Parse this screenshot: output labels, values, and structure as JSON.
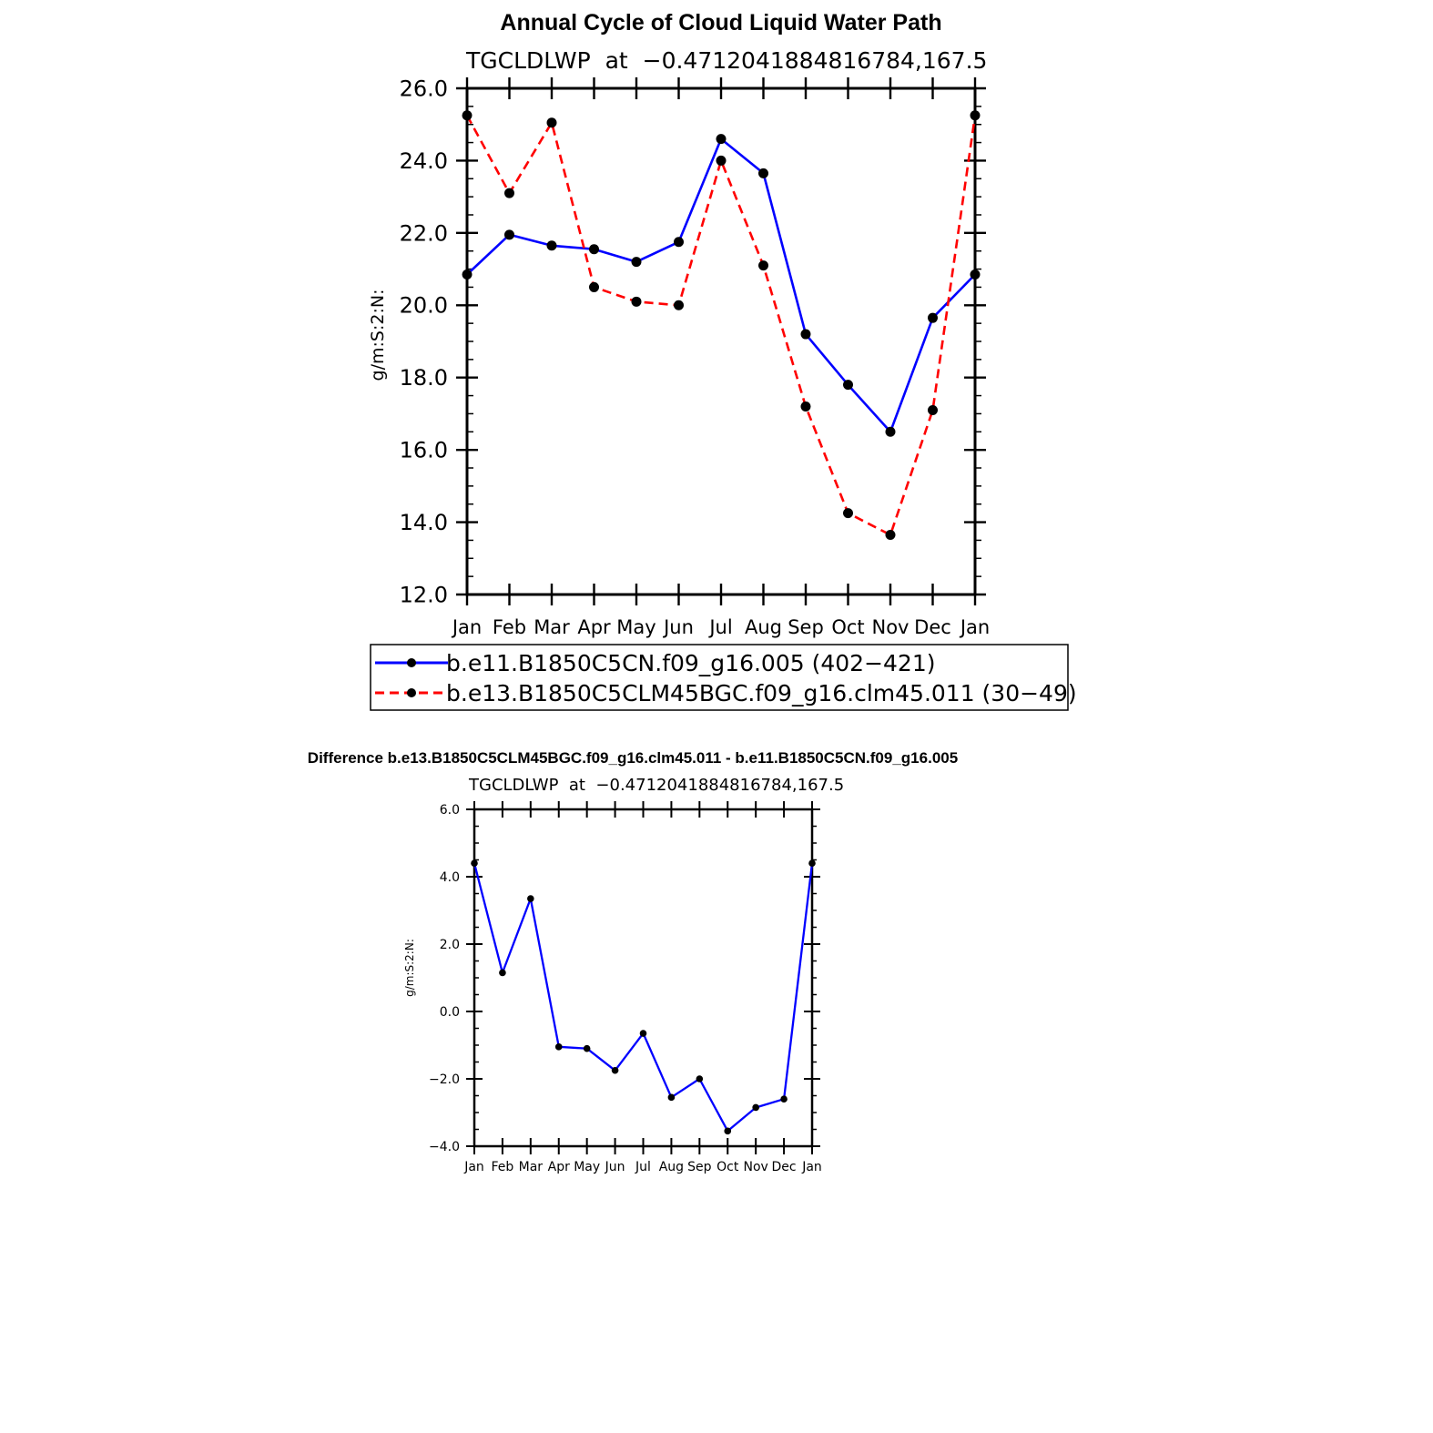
{
  "chart_data": [
    {
      "type": "line",
      "title": "Annual Cycle of Cloud Liquid Water Path",
      "subtitle": "TGCLDLWP  at  −0.4712041884816784,167.5",
      "ylabel": "g/m:S:2:N:",
      "xlabel": "",
      "ylim": [
        12.0,
        26.0
      ],
      "yticks": [
        "12.0",
        "14.0",
        "16.0",
        "18.0",
        "20.0",
        "22.0",
        "24.0",
        "26.0"
      ],
      "yticks_values": [
        12,
        14,
        16,
        18,
        20,
        22,
        24,
        26
      ],
      "categories": [
        "Jan",
        "Feb",
        "Mar",
        "Apr",
        "May",
        "Jun",
        "Jul",
        "Aug",
        "Sep",
        "Oct",
        "Nov",
        "Dec",
        "Jan"
      ],
      "series": [
        {
          "name": "b.e11.B1850C5CN.f09_g16.005 (402−421)",
          "color": "#0000ff",
          "dash": "solid",
          "values": [
            20.85,
            21.95,
            21.65,
            21.55,
            21.2,
            21.75,
            24.6,
            23.65,
            19.2,
            17.8,
            16.5,
            19.65,
            20.85
          ]
        },
        {
          "name": "b.e13.B1850C5CLM45BGC.f09_g16.clm45.011 (30−49)",
          "color": "#ff0000",
          "dash": "dashed",
          "values": [
            25.25,
            23.1,
            25.05,
            20.5,
            20.1,
            20.0,
            24.0,
            21.1,
            17.2,
            14.25,
            13.65,
            17.1,
            25.25
          ]
        }
      ],
      "legend_position": "below"
    },
    {
      "type": "line",
      "title": "Difference b.e13.B1850C5CLM45BGC.f09_g16.clm45.011 - b.e11.B1850C5CN.f09_g16.005",
      "subtitle": "TGCLDLWP  at  −0.4712041884816784,167.5",
      "ylabel": "g/m:S:2:N:",
      "xlabel": "",
      "ylim": [
        -4.0,
        6.0
      ],
      "yticks": [
        "−4.0",
        "−2.0",
        "0.0",
        "2.0",
        "4.0",
        "6.0"
      ],
      "yticks_values": [
        -4,
        -2,
        0,
        2,
        4,
        6
      ],
      "categories": [
        "Jan",
        "Feb",
        "Mar",
        "Apr",
        "May",
        "Jun",
        "Jul",
        "Aug",
        "Sep",
        "Oct",
        "Nov",
        "Dec",
        "Jan"
      ],
      "series": [
        {
          "name": "Difference",
          "color": "#0000ff",
          "dash": "solid",
          "values": [
            4.4,
            1.15,
            3.35,
            -1.05,
            -1.1,
            -1.75,
            -0.65,
            -2.55,
            -2.0,
            -3.55,
            -2.85,
            -2.6,
            4.4
          ]
        }
      ]
    }
  ]
}
